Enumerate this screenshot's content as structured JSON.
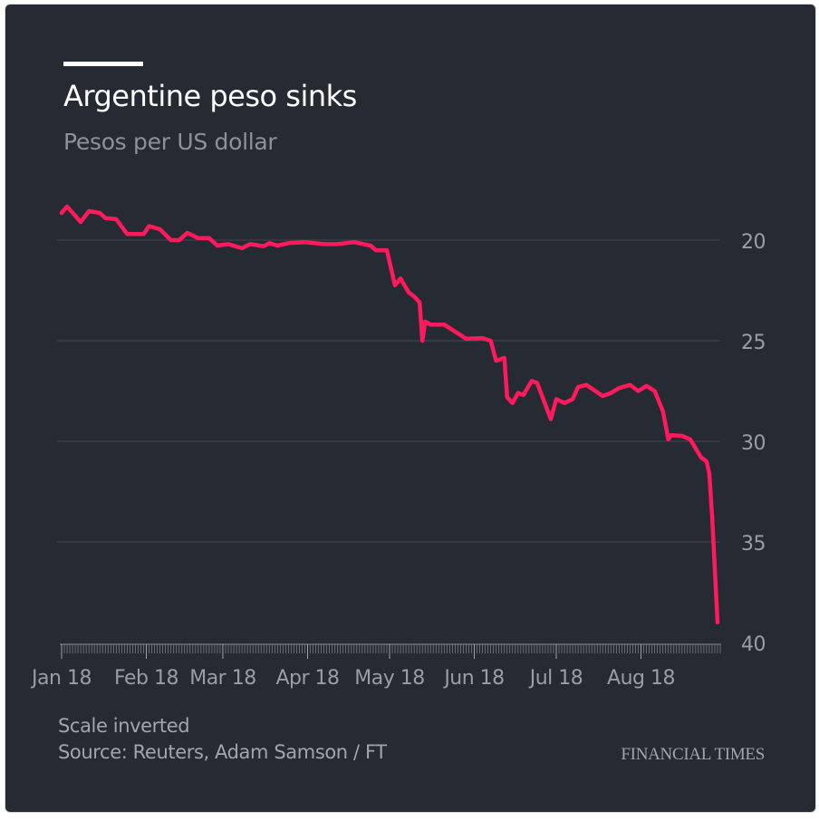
{
  "chart_data": {
    "type": "line",
    "title": "Argentine peso sinks",
    "subtitle": "Pesos per US dollar",
    "xlabel": "",
    "ylabel": "",
    "y_inverted": true,
    "ylim": [
      17.5,
      40
    ],
    "xlim": [
      "2018-01-01",
      "2018-08-30"
    ],
    "y_ticks": [
      20,
      25,
      30,
      35,
      40
    ],
    "x_ticks": [
      {
        "date": "2018-01-01",
        "label": "Jan 18"
      },
      {
        "date": "2018-02-01",
        "label": "Feb 18"
      },
      {
        "date": "2018-03-01",
        "label": "Mar 18"
      },
      {
        "date": "2018-04-01",
        "label": "Apr 18"
      },
      {
        "date": "2018-05-01",
        "label": "May 18"
      },
      {
        "date": "2018-06-01",
        "label": "Jun 18"
      },
      {
        "date": "2018-07-01",
        "label": "Jul 18"
      },
      {
        "date": "2018-08-01",
        "label": "Aug 18"
      }
    ],
    "grid": true,
    "line_color": "#ff1a5b",
    "series": [
      {
        "x": [
          "2018-01-01",
          "2018-01-03",
          "2018-01-08",
          "2018-01-11",
          "2018-01-15",
          "2018-01-17",
          "2018-01-21",
          "2018-01-25",
          "2018-01-31",
          "2018-02-02",
          "2018-02-06",
          "2018-02-10",
          "2018-02-13",
          "2018-02-16",
          "2018-02-20",
          "2018-02-24",
          "2018-02-27",
          "2018-03-03",
          "2018-03-08",
          "2018-03-11",
          "2018-03-16",
          "2018-03-18",
          "2018-03-21",
          "2018-03-25",
          "2018-03-31",
          "2018-04-07",
          "2018-04-12",
          "2018-04-18",
          "2018-04-24",
          "2018-04-26",
          "2018-04-30",
          "2018-05-03",
          "2018-05-05",
          "2018-05-08",
          "2018-05-10",
          "2018-05-12",
          "2018-05-13",
          "2018-05-14",
          "2018-05-16",
          "2018-05-21",
          "2018-05-25",
          "2018-05-29",
          "2018-06-04",
          "2018-06-07",
          "2018-06-09",
          "2018-06-12",
          "2018-06-13",
          "2018-06-15",
          "2018-06-17",
          "2018-06-19",
          "2018-06-22",
          "2018-06-24",
          "2018-06-29",
          "2018-07-01",
          "2018-07-04",
          "2018-07-07",
          "2018-07-09",
          "2018-07-12",
          "2018-07-18",
          "2018-07-21",
          "2018-07-24",
          "2018-07-28",
          "2018-07-31",
          "2018-08-03",
          "2018-08-06",
          "2018-08-09",
          "2018-08-11",
          "2018-08-12",
          "2018-08-16",
          "2018-08-19",
          "2018-08-23",
          "2018-08-25",
          "2018-08-26",
          "2018-08-27",
          "2018-08-29"
        ],
        "values": [
          18.65,
          18.33,
          19.1,
          18.56,
          18.65,
          18.9,
          18.96,
          19.7,
          19.7,
          19.3,
          19.46,
          20.0,
          20.0,
          19.64,
          19.9,
          19.9,
          20.27,
          20.2,
          20.4,
          20.2,
          20.3,
          20.15,
          20.27,
          20.15,
          20.1,
          20.2,
          20.2,
          20.1,
          20.27,
          20.5,
          20.5,
          22.25,
          21.9,
          22.6,
          22.8,
          23.1,
          25.0,
          24.05,
          24.2,
          24.2,
          24.55,
          24.9,
          24.87,
          25.0,
          26.0,
          25.85,
          27.8,
          28.1,
          27.6,
          27.7,
          27.0,
          27.1,
          28.9,
          27.9,
          28.1,
          27.9,
          27.3,
          27.2,
          27.75,
          27.6,
          27.35,
          27.2,
          27.5,
          27.25,
          27.5,
          28.5,
          29.9,
          29.7,
          29.73,
          29.9,
          30.8,
          31.0,
          31.6,
          33.7,
          39.0
        ]
      }
    ]
  },
  "footer": {
    "note": "Scale inverted",
    "source": "Source: Reuters, Adam Samson / FT",
    "logo": "FINANCIAL TIMES"
  }
}
